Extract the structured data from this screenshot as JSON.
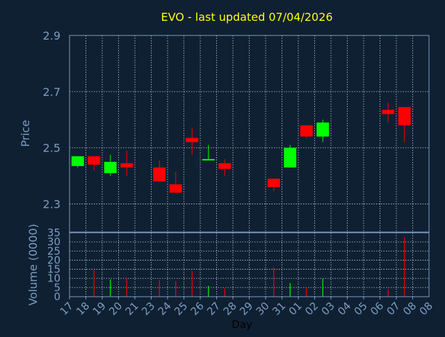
{
  "colors": {
    "background": "#0f2033",
    "title": "#ffff00",
    "axis_text": "#7c9dbf",
    "frame": "#7c9dbf",
    "grid": "#c8d2dc",
    "up": "#00ff00",
    "down": "#ff0000"
  },
  "chart_data": [
    {
      "type": "candlestick",
      "title": "EVO - last updated 07/04/2026",
      "ylabel": "Price",
      "ylim": [
        2.2,
        2.9
      ],
      "yticks": [
        "2.3",
        "2.5",
        "2.7",
        "2.9"
      ],
      "grid": true,
      "categories": [
        "17",
        "18",
        "19",
        "20",
        "21",
        "23",
        "24",
        "25",
        "26",
        "27",
        "28",
        "29",
        "30",
        "31",
        "01",
        "02",
        "03",
        "04",
        "05",
        "06",
        "07",
        "08"
      ],
      "candles": [
        {
          "day": "17",
          "open": 2.435,
          "close": 2.47,
          "high": 2.47,
          "low": 2.43
        },
        {
          "day": "18",
          "open": 2.47,
          "close": 2.44,
          "high": 2.47,
          "low": 2.42
        },
        {
          "day": "19",
          "open": 2.41,
          "close": 2.45,
          "high": 2.475,
          "low": 2.4
        },
        {
          "day": "20",
          "open": 2.445,
          "close": 2.43,
          "high": 2.49,
          "low": 2.4
        },
        {
          "day": "23",
          "open": 2.43,
          "close": 2.38,
          "high": 2.455,
          "low": 2.38
        },
        {
          "day": "24",
          "open": 2.37,
          "close": 2.34,
          "high": 2.415,
          "low": 2.34
        },
        {
          "day": "25",
          "open": 2.535,
          "close": 2.52,
          "high": 2.57,
          "low": 2.475
        },
        {
          "day": "26",
          "open": 2.46,
          "close": 2.46,
          "high": 2.51,
          "low": 2.46
        },
        {
          "day": "27",
          "open": 2.445,
          "close": 2.425,
          "high": 2.46,
          "low": 2.4
        },
        {
          "day": "30",
          "open": 2.39,
          "close": 2.36,
          "high": 2.39,
          "low": 2.345
        },
        {
          "day": "31",
          "open": 2.43,
          "close": 2.5,
          "high": 2.51,
          "low": 2.43
        },
        {
          "day": "01",
          "open": 2.58,
          "close": 2.54,
          "high": 2.58,
          "low": 2.535
        },
        {
          "day": "02",
          "open": 2.54,
          "close": 2.59,
          "high": 2.6,
          "low": 2.52
        },
        {
          "day": "06",
          "open": 2.635,
          "close": 2.62,
          "high": 2.66,
          "low": 2.59
        },
        {
          "day": "07",
          "open": 2.645,
          "close": 2.58,
          "high": 2.645,
          "low": 2.52
        }
      ]
    },
    {
      "type": "bar",
      "ylabel": "Volume (0000)",
      "xlabel": "Day",
      "ylim": [
        0,
        35
      ],
      "yticks": [
        "0",
        "5",
        "10",
        "15",
        "20",
        "25",
        "30",
        "35"
      ],
      "grid": true,
      "categories": [
        "17",
        "18",
        "19",
        "20",
        "21",
        "23",
        "24",
        "25",
        "26",
        "27",
        "28",
        "29",
        "30",
        "31",
        "01",
        "02",
        "03",
        "04",
        "05",
        "06",
        "07",
        "08"
      ],
      "bars": [
        {
          "day": "18",
          "value": 14.5,
          "direction": "down"
        },
        {
          "day": "19",
          "value": 9.5,
          "direction": "up"
        },
        {
          "day": "20",
          "value": 10.0,
          "direction": "down"
        },
        {
          "day": "23",
          "value": 9.0,
          "direction": "down"
        },
        {
          "day": "24",
          "value": 8.5,
          "direction": "down"
        },
        {
          "day": "25",
          "value": 14.0,
          "direction": "down"
        },
        {
          "day": "26",
          "value": 6.0,
          "direction": "up"
        },
        {
          "day": "27",
          "value": 4.5,
          "direction": "down"
        },
        {
          "day": "30",
          "value": 16.0,
          "direction": "down"
        },
        {
          "day": "31",
          "value": 7.5,
          "direction": "up"
        },
        {
          "day": "01",
          "value": 4.5,
          "direction": "down"
        },
        {
          "day": "02",
          "value": 10.0,
          "direction": "up"
        },
        {
          "day": "06",
          "value": 4.0,
          "direction": "down"
        },
        {
          "day": "07",
          "value": 32.5,
          "direction": "down"
        }
      ]
    }
  ]
}
